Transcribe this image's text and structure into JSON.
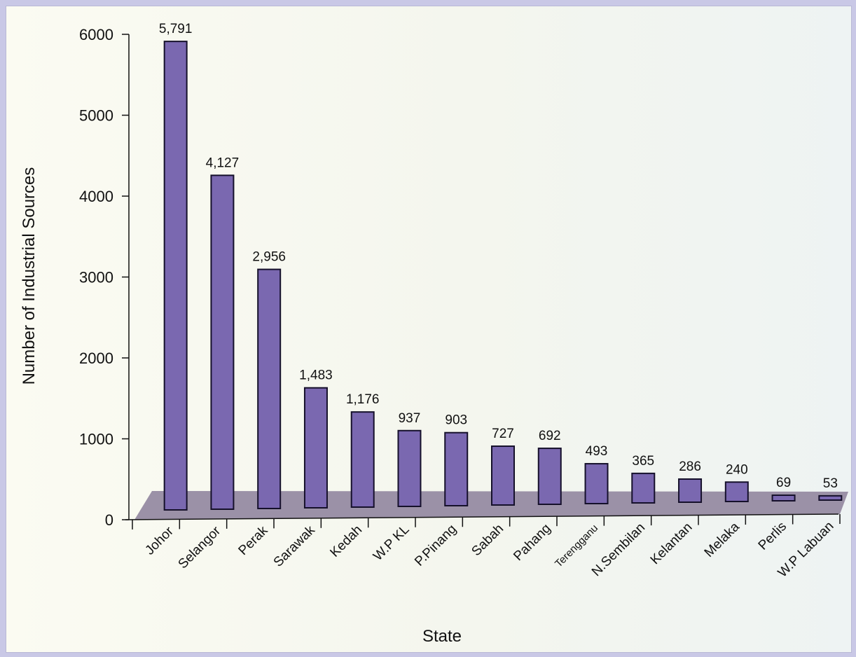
{
  "chart_data": {
    "type": "bar",
    "title": "",
    "xlabel": "State",
    "ylabel": "Number of Industrial Sources",
    "ylim": [
      0,
      6000
    ],
    "yticks": [
      0,
      1000,
      2000,
      3000,
      4000,
      5000,
      6000
    ],
    "grid": false,
    "legend": "none",
    "categories": [
      "Johor",
      "Selangor",
      "Perak",
      "Sarawak",
      "Kedah",
      "W.P KL",
      "P.Pinang",
      "Sabah",
      "Pahang",
      "Terengganu",
      "N.Sembilan",
      "Kelantan",
      "Melaka",
      "Perlis",
      "W.P Labuan"
    ],
    "values": [
      5791,
      4127,
      2956,
      1483,
      1176,
      937,
      903,
      727,
      692,
      493,
      365,
      286,
      240,
      69,
      53
    ],
    "value_labels": [
      "5,791",
      "4,127",
      "2,956",
      "1,483",
      "1,176",
      "937",
      "903",
      "727",
      "692",
      "493",
      "365",
      "286",
      "240",
      "69",
      "53"
    ],
    "colors": {
      "bar_fill": "#7a68b0",
      "bar_stroke": "#15102a",
      "floor": "#968ba2",
      "background": "#f7f8ef",
      "frame": "#c9c8e6"
    }
  }
}
